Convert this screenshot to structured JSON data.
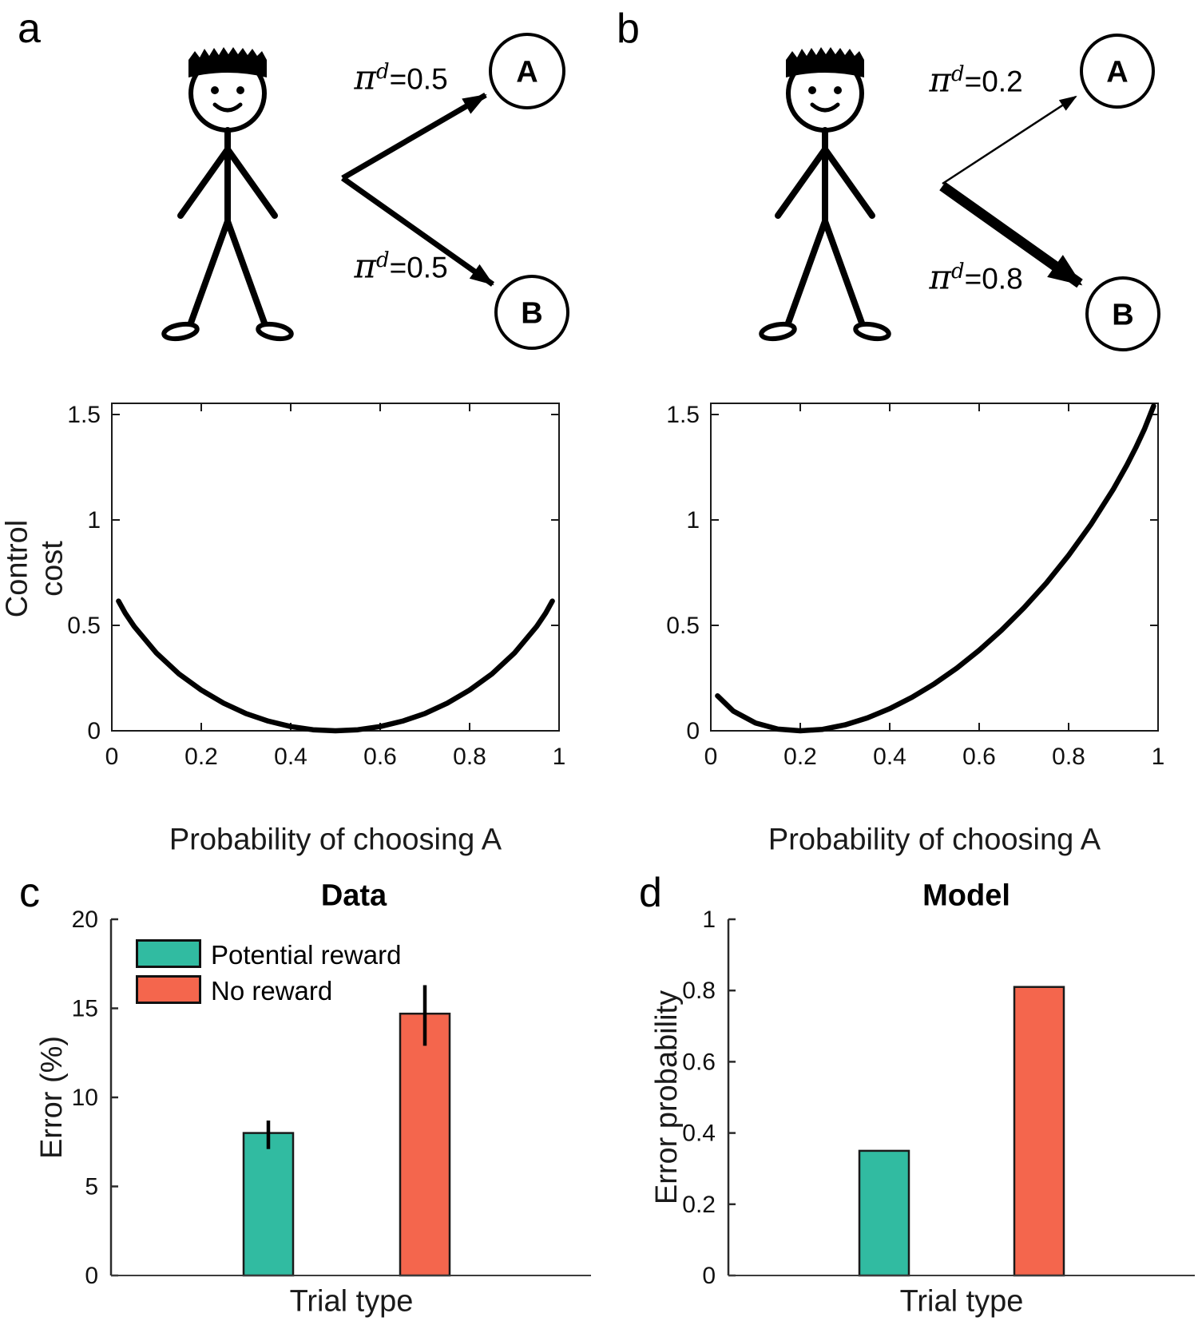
{
  "figure": {
    "panel_a": {
      "letter": "a",
      "nodes": {
        "a": "A",
        "b": "B"
      },
      "edge_top": {
        "pi": "π",
        "sup": "d",
        "eq": "=0.5"
      },
      "edge_bottom": {
        "pi": "π",
        "sup": "d",
        "eq": "=0.5"
      }
    },
    "panel_b": {
      "letter": "b",
      "nodes": {
        "a": "A",
        "b": "B"
      },
      "edge_top": {
        "pi": "π",
        "sup": "d",
        "eq": "=0.2"
      },
      "edge_bottom": {
        "pi": "π",
        "sup": "d",
        "eq": "=0.8"
      }
    },
    "panel_c_letter": "c",
    "panel_d_letter": "d"
  },
  "chart_data": [
    {
      "id": "control_cost_a",
      "type": "line",
      "panel": "a",
      "title": "",
      "xlabel": "Probability of choosing A",
      "ylabel_lines": [
        "Control",
        "cost"
      ],
      "xlim": [
        0,
        1
      ],
      "ylim": [
        0,
        1.553
      ],
      "xticks": [
        0,
        0.2,
        0.4,
        0.6,
        0.8,
        1
      ],
      "yticks": [
        0,
        0.5,
        1,
        1.5
      ],
      "grid": false,
      "pi_d": 0.5,
      "line_color": "#000000",
      "x": [
        0.015,
        0.03,
        0.05,
        0.1,
        0.15,
        0.2,
        0.25,
        0.3,
        0.35,
        0.4,
        0.45,
        0.5,
        0.55,
        0.6,
        0.65,
        0.7,
        0.75,
        0.8,
        0.85,
        0.9,
        0.95,
        0.97,
        0.985
      ],
      "y": [
        0.615,
        0.558,
        0.495,
        0.368,
        0.27,
        0.193,
        0.131,
        0.082,
        0.046,
        0.02,
        0.005,
        0,
        0.005,
        0.02,
        0.046,
        0.082,
        0.131,
        0.193,
        0.27,
        0.368,
        0.495,
        0.558,
        0.615
      ]
    },
    {
      "id": "control_cost_b",
      "type": "line",
      "panel": "b",
      "title": "",
      "xlabel": "Probability of choosing A",
      "ylabel_lines": [],
      "xlim": [
        0,
        1
      ],
      "ylim": [
        0,
        1.553
      ],
      "xticks": [
        0,
        0.2,
        0.4,
        0.6,
        0.8,
        1
      ],
      "yticks": [
        0,
        0.5,
        1,
        1.5
      ],
      "grid": false,
      "pi_d": 0.2,
      "line_color": "#000000",
      "x": [
        0.015,
        0.05,
        0.1,
        0.15,
        0.2,
        0.25,
        0.3,
        0.35,
        0.4,
        0.45,
        0.5,
        0.55,
        0.6,
        0.65,
        0.7,
        0.75,
        0.8,
        0.85,
        0.9,
        0.93,
        0.95,
        0.97,
        0.99
      ],
      "y": [
        0.166,
        0.094,
        0.037,
        0.008,
        0,
        0.007,
        0.028,
        0.061,
        0.105,
        0.159,
        0.223,
        0.297,
        0.382,
        0.477,
        0.583,
        0.7,
        0.832,
        0.979,
        1.146,
        1.259,
        1.342,
        1.433,
        1.54
      ]
    },
    {
      "id": "data_bars",
      "type": "bar",
      "panel": "c",
      "title": "Data",
      "xlabel": "Trial type",
      "ylabel": "Error (%)",
      "ylim": [
        0,
        20
      ],
      "yticks": [
        0,
        5,
        10,
        15,
        20
      ],
      "grid": false,
      "categories": [
        "Potential reward",
        "No reward"
      ],
      "values": [
        8,
        14.7
      ],
      "error_low": [
        7.1,
        12.9
      ],
      "error_high": [
        8.7,
        16.3
      ],
      "colors": [
        "#31bba1",
        "#f4664d"
      ],
      "legend": [
        "Potential reward",
        "No reward"
      ],
      "legend_position": "top-left"
    },
    {
      "id": "model_bars",
      "type": "bar",
      "panel": "d",
      "title": "Model",
      "xlabel": "Trial type",
      "ylabel": "Error probability",
      "ylim": [
        0,
        1
      ],
      "yticks": [
        0,
        0.2,
        0.4,
        0.6,
        0.8,
        1
      ],
      "grid": false,
      "categories": [
        "Potential reward",
        "No reward"
      ],
      "values": [
        0.35,
        0.81
      ],
      "colors": [
        "#31bba1",
        "#f4664d"
      ]
    }
  ]
}
